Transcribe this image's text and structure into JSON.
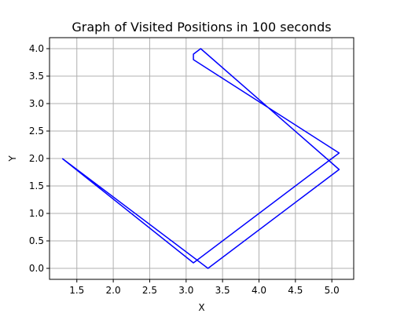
{
  "chart_data": {
    "type": "line",
    "title": "Graph of Visited Positions in 100 seconds",
    "xlabel": "X",
    "ylabel": "Y",
    "xlim": [
      1.125,
      5.3
    ],
    "ylim": [
      -0.2,
      4.2
    ],
    "grid": true,
    "x_ticks": [
      1.5,
      2.0,
      2.5,
      3.0,
      3.5,
      4.0,
      4.5,
      5.0
    ],
    "x_tick_labels": [
      "1.5",
      "2.0",
      "2.5",
      "3.0",
      "3.5",
      "4.0",
      "4.5",
      "5.0"
    ],
    "y_ticks": [
      0.0,
      0.5,
      1.0,
      1.5,
      2.0,
      2.5,
      3.0,
      3.5,
      4.0
    ],
    "y_tick_labels": [
      "0.0",
      "0.5",
      "1.0",
      "1.5",
      "2.0",
      "2.5",
      "3.0",
      "3.5",
      "4.0"
    ],
    "series": [
      {
        "color": "#0000ff",
        "x": [
          1.3,
          3.1,
          5.1,
          3.1,
          3.1,
          3.2,
          5.1,
          3.3,
          1.3
        ],
        "y": [
          2.0,
          0.1,
          2.1,
          3.8,
          3.9,
          4.0,
          1.8,
          0.0,
          2.0
        ]
      }
    ]
  },
  "colors": {
    "grid": "#b0b0b0",
    "axes": "#000000",
    "background": "#ffffff"
  }
}
